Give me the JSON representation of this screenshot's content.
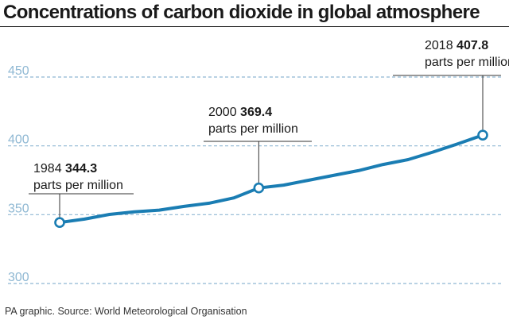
{
  "header": {
    "title": "Concentrations of carbon dioxide in global atmosphere"
  },
  "footer": {
    "source": "PA graphic. Source: World Meteorological Organisation"
  },
  "colors": {
    "line": "#1a7db3",
    "grid": "#8fb8d3",
    "text": "#1a1a1a"
  },
  "chart_data": {
    "type": "line",
    "title": "Concentrations of carbon dioxide in global atmosphere",
    "xlabel": "",
    "ylabel": "",
    "xlim": [
      1984,
      2018
    ],
    "ylim": [
      300,
      450
    ],
    "yticks": [
      300,
      350,
      400,
      450
    ],
    "grid": true,
    "series": [
      {
        "x": [
          1984,
          1986,
          1988,
          1990,
          1992,
          1994,
          1996,
          1998,
          2000,
          2002,
          2004,
          2006,
          2008,
          2010,
          2012,
          2014,
          2016,
          2018
        ],
        "values": [
          344.3,
          346.8,
          350.2,
          352.1,
          353.3,
          356.0,
          358.3,
          362.2,
          369.4,
          371.5,
          375.0,
          378.5,
          382.0,
          386.5,
          390.0,
          395.5,
          401.5,
          407.8
        ]
      }
    ],
    "annotations": [
      {
        "year": "1984",
        "value": "344.3",
        "unit": "parts per million",
        "x": 1984,
        "y": 344.3
      },
      {
        "year": "2000",
        "value": "369.4",
        "unit": "parts per million",
        "x": 2000,
        "y": 369.4
      },
      {
        "year": "2018",
        "value": "407.8",
        "unit": "parts per million",
        "x": 2018,
        "y": 407.8
      }
    ]
  }
}
